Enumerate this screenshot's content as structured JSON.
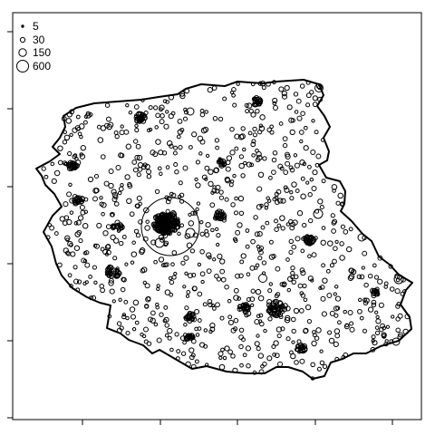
{
  "legend": {
    "items": [
      {
        "label": "5",
        "value": 5
      },
      {
        "label": "30",
        "value": 30
      },
      {
        "label": "150",
        "value": 150
      },
      {
        "label": "600",
        "value": 600
      }
    ]
  },
  "colors": {
    "background": "#ffffff",
    "outline": "#000000",
    "points": "#000000"
  },
  "chart_data": {
    "type": "scatter",
    "title": "",
    "xlabel": "",
    "ylabel": "",
    "marker": "proportional-circle",
    "legend_placement": "top-left",
    "grid": false
  }
}
